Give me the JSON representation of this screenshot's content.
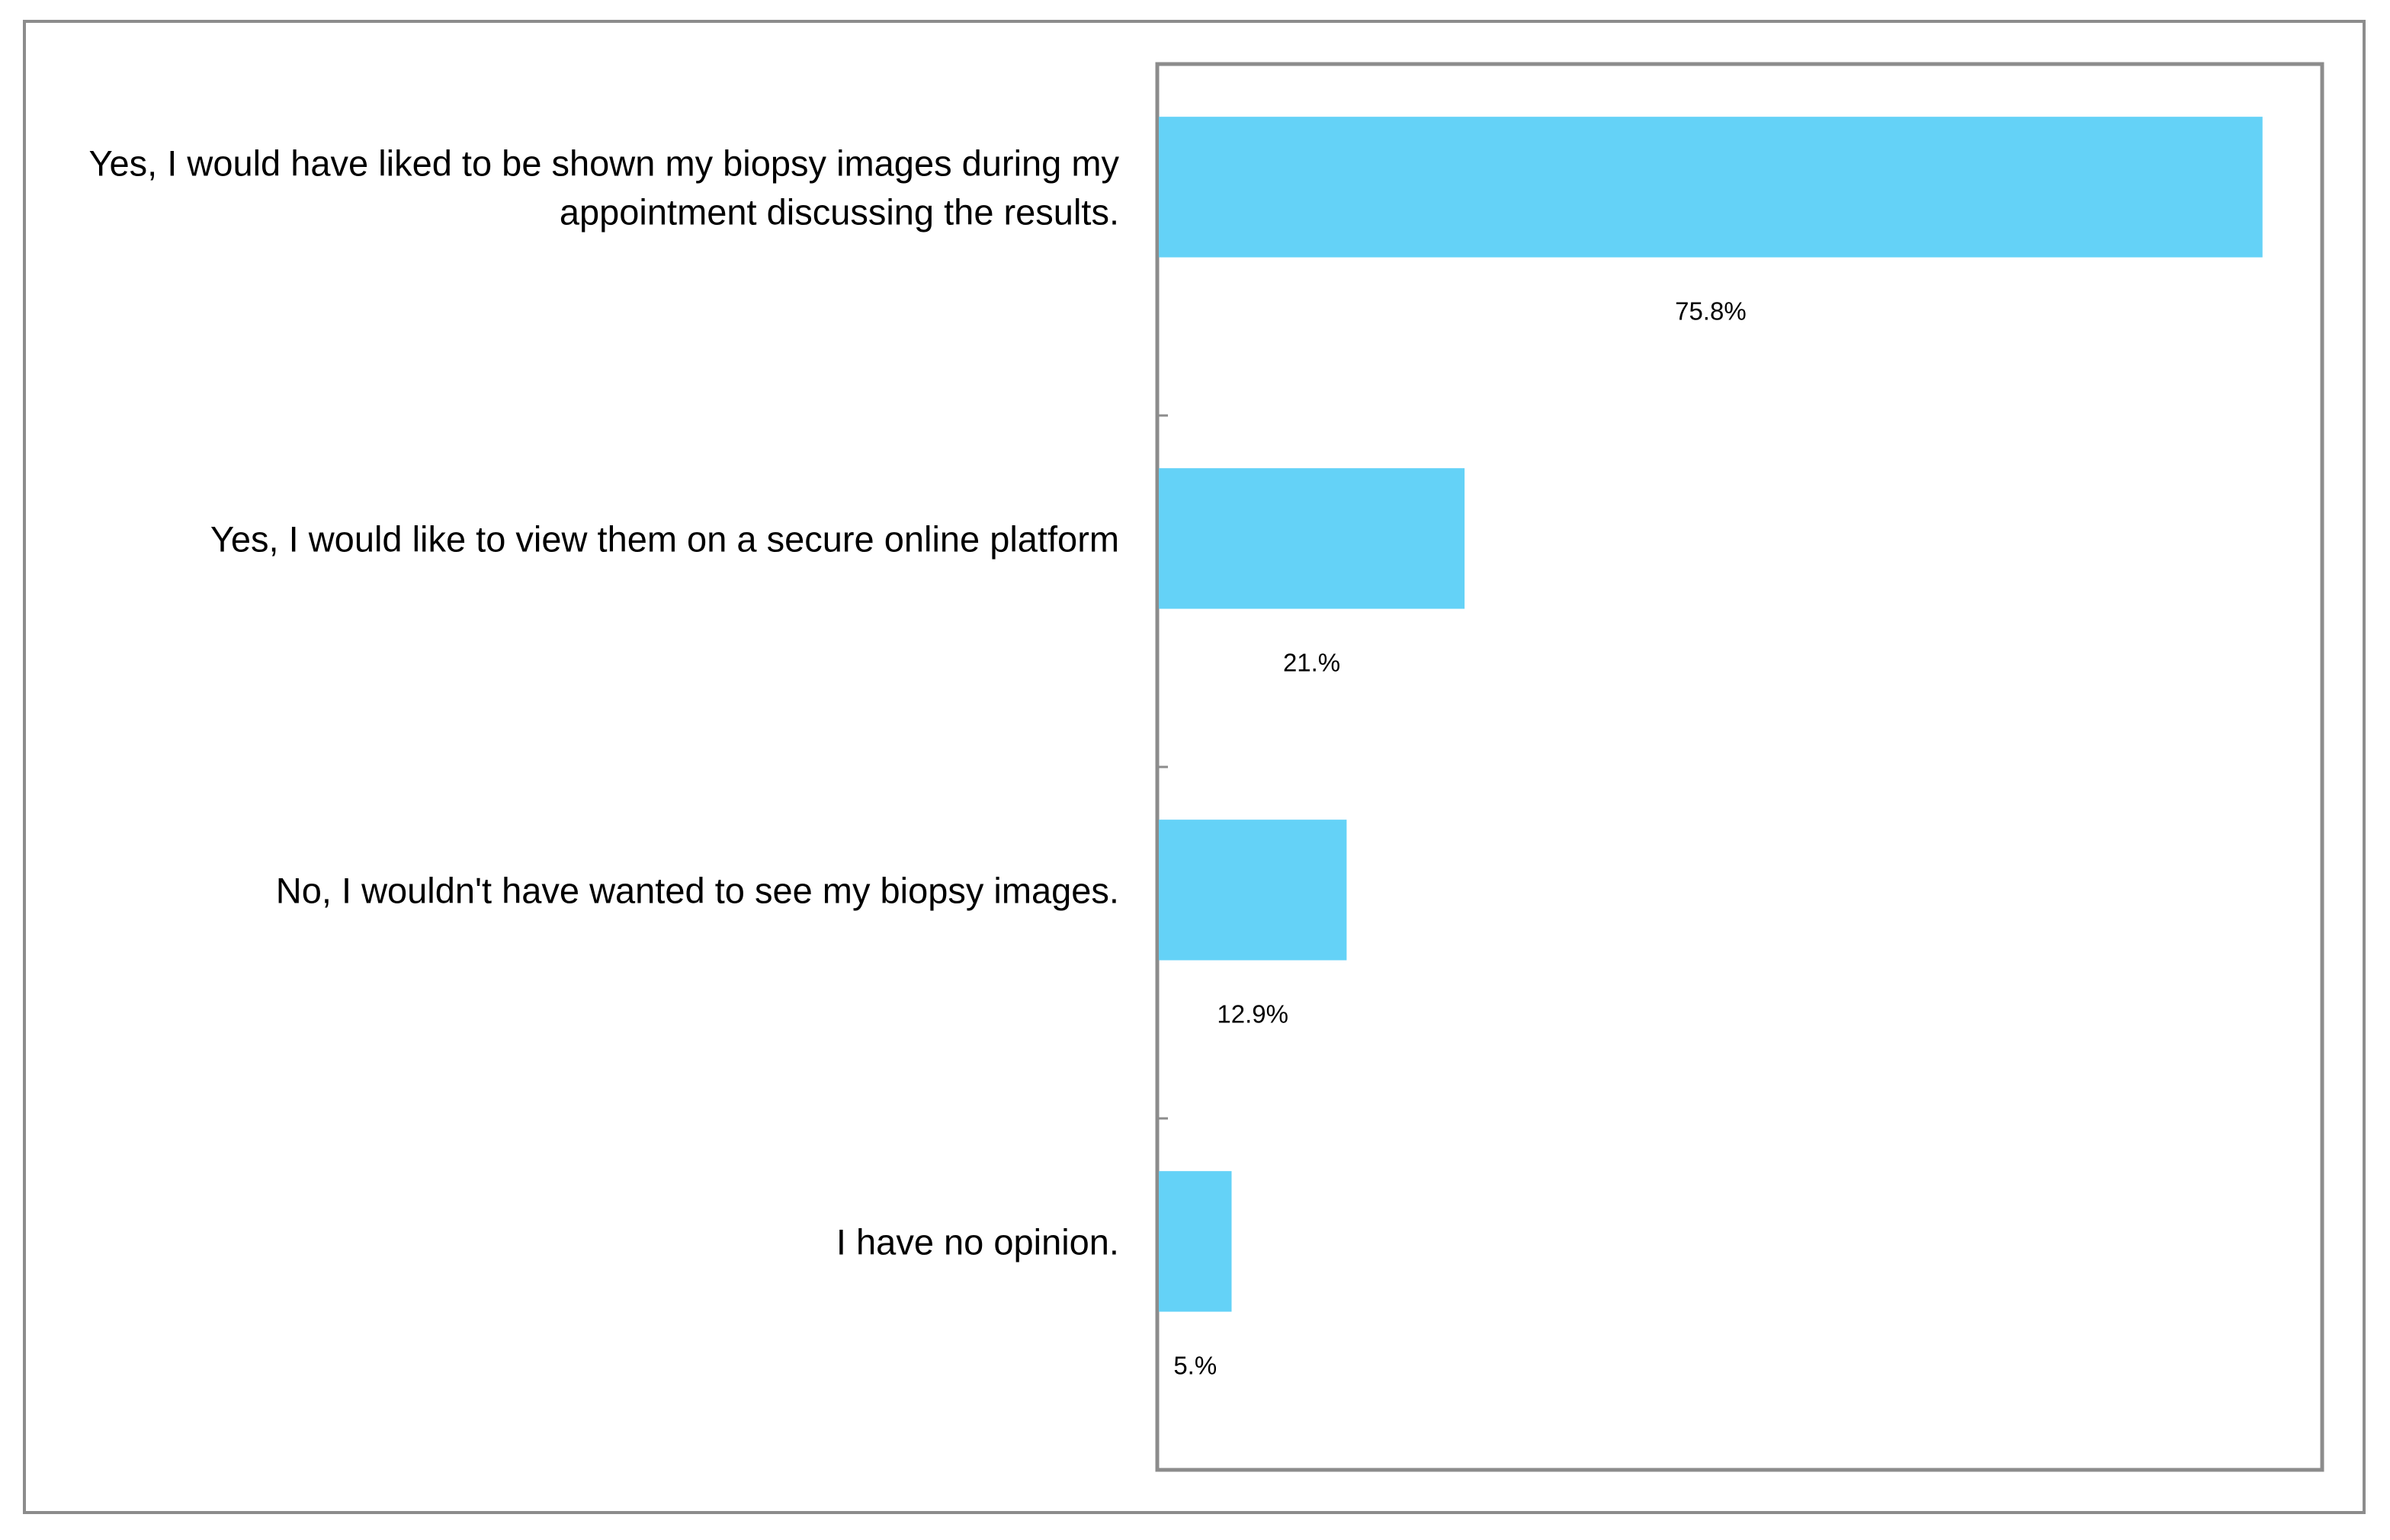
{
  "chart_data": {
    "type": "bar",
    "orientation": "horizontal",
    "categories": [
      "Yes, I would have liked to be shown my biopsy images during my appointment discussing the results.",
      "Yes, I would like to view them on a secure online platform",
      "No, I wouldn't have wanted to see my biopsy images.",
      "I have no opinion."
    ],
    "category_lines": [
      [
        "Yes, I would have liked to be shown my biopsy images during my",
        "appointment discussing the results."
      ],
      [
        "Yes, I would like to view them on a secure online platform"
      ],
      [
        "No, I wouldn't have wanted to see my biopsy images."
      ],
      [
        "I have no opinion."
      ]
    ],
    "values": [
      75.8,
      21.0,
      12.9,
      5.0
    ],
    "data_labels": [
      "75.8%",
      "21.%",
      "12.9%",
      "5.%"
    ],
    "xlim": [
      0,
      80
    ],
    "title": "",
    "xlabel": "",
    "ylabel": "",
    "grid": false,
    "legend": "none",
    "bar_color": "#64d2f7",
    "frame_color": "#8c8c8c"
  }
}
